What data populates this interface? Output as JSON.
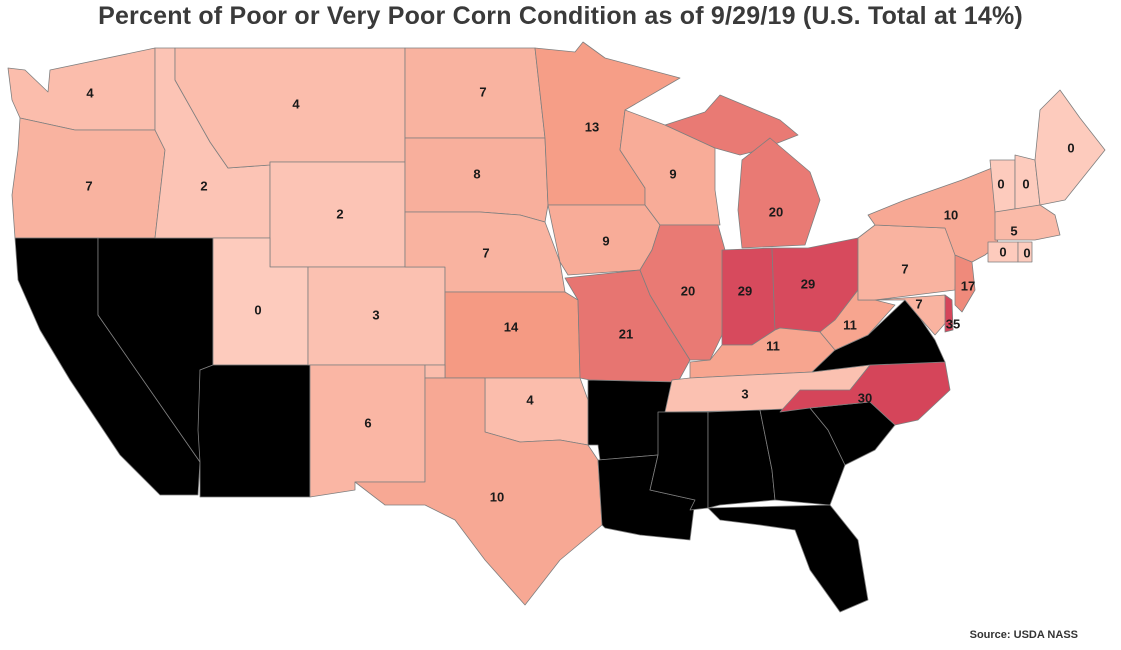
{
  "title": "Percent of Poor or Very Poor Corn Condition as of 9/29/19 (U.S. Total at 14%)",
  "source": "Source: USDA NASS",
  "color_scale": {
    "low": "#fdcbbd",
    "mid": "#f59a83",
    "high": "#d5455a"
  },
  "chart_data": {
    "type": "choropleth",
    "title": "Percent of Poor or Very Poor Corn Condition as of 9/29/19 (U.S. Total at 14%)",
    "us_total": 14,
    "unit": "%",
    "states": [
      {
        "state": "Washington",
        "value": 4
      },
      {
        "state": "Oregon",
        "value": 7
      },
      {
        "state": "Idaho",
        "value": 2
      },
      {
        "state": "Montana",
        "value": 4
      },
      {
        "state": "Wyoming",
        "value": 2
      },
      {
        "state": "Utah",
        "value": 0
      },
      {
        "state": "Colorado",
        "value": 3
      },
      {
        "state": "North Dakota",
        "value": 7
      },
      {
        "state": "South Dakota",
        "value": 8
      },
      {
        "state": "Nebraska",
        "value": 7
      },
      {
        "state": "Kansas",
        "value": 14
      },
      {
        "state": "Oklahoma",
        "value": 4
      },
      {
        "state": "New Mexico",
        "value": 6
      },
      {
        "state": "Texas",
        "value": 10
      },
      {
        "state": "Minnesota",
        "value": 13
      },
      {
        "state": "Iowa",
        "value": 9
      },
      {
        "state": "Missouri",
        "value": 21
      },
      {
        "state": "Wisconsin",
        "value": 9
      },
      {
        "state": "Illinois",
        "value": 20
      },
      {
        "state": "Michigan",
        "value": 20
      },
      {
        "state": "Indiana",
        "value": 29
      },
      {
        "state": "Ohio",
        "value": 29
      },
      {
        "state": "Kentucky",
        "value": 11
      },
      {
        "state": "Tennessee",
        "value": 3
      },
      {
        "state": "North Carolina",
        "value": 30
      },
      {
        "state": "West Virginia",
        "value": 11
      },
      {
        "state": "Pennsylvania",
        "value": 7
      },
      {
        "state": "Maryland",
        "value": 7
      },
      {
        "state": "Delaware",
        "value": 35
      },
      {
        "state": "New Jersey",
        "value": 17
      },
      {
        "state": "New York",
        "value": 10
      },
      {
        "state": "Vermont",
        "value": 0
      },
      {
        "state": "New Hampshire",
        "value": 0
      },
      {
        "state": "Maine",
        "value": 0
      },
      {
        "state": "Massachusetts",
        "value": 5
      },
      {
        "state": "Connecticut",
        "value": 0
      },
      {
        "state": "Rhode Island",
        "value": 0
      }
    ]
  }
}
